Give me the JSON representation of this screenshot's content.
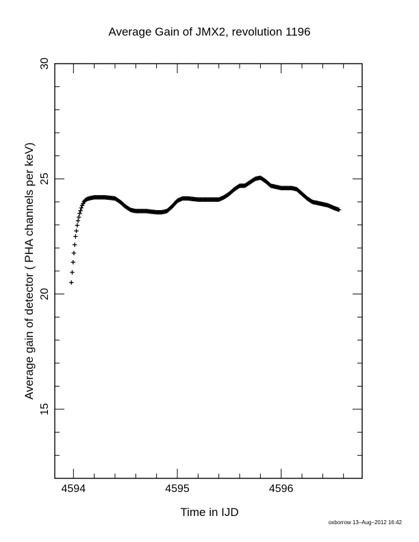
{
  "chart_data": {
    "type": "scatter",
    "title": "Average Gain of JMX2, revolution 1196",
    "xlabel": "Time in IJD",
    "ylabel": "Average gain of detector ( PHA channels per keV)",
    "xlim": [
      4593.82,
      4596.78
    ],
    "ylim": [
      12,
      30
    ],
    "x_ticks": [
      4594,
      4595,
      4596
    ],
    "y_ticks": [
      15,
      20,
      25,
      30
    ],
    "x_minor_step": 0.2,
    "y_minor_step": 1,
    "grid": false,
    "marker": "plus",
    "series": [
      {
        "x": [
          4593.98,
          4594.0,
          4594.02,
          4594.04,
          4594.06,
          4594.08,
          4594.1,
          4594.12,
          4594.15,
          4594.2,
          4594.3,
          4594.4,
          4594.45,
          4594.5,
          4594.55,
          4594.6,
          4594.7,
          4594.8,
          4594.85,
          4594.9,
          4594.95,
          4595.0,
          4595.05,
          4595.1,
          4595.2,
          4595.3,
          4595.4,
          4595.45,
          4595.5,
          4595.55,
          4595.6,
          4595.65,
          4595.7,
          4595.75,
          4595.8,
          4595.85,
          4595.9,
          4596.0,
          4596.1,
          4596.15,
          4596.2,
          4596.25,
          4596.3,
          4596.35,
          4596.4,
          4596.45,
          4596.5,
          4596.56
        ],
        "y": [
          20.5,
          21.6,
          22.5,
          23.1,
          23.5,
          23.8,
          24.0,
          24.1,
          24.15,
          24.2,
          24.2,
          24.15,
          24.0,
          23.8,
          23.65,
          23.6,
          23.6,
          23.55,
          23.55,
          23.6,
          23.8,
          24.05,
          24.15,
          24.15,
          24.1,
          24.1,
          24.1,
          24.2,
          24.35,
          24.55,
          24.7,
          24.7,
          24.85,
          25.0,
          25.05,
          24.9,
          24.7,
          24.6,
          24.6,
          24.55,
          24.35,
          24.15,
          24.0,
          23.95,
          23.9,
          23.85,
          23.75,
          23.65
        ]
      }
    ]
  },
  "footer": {
    "stamp": "oxborrow 13–Aug–2012 16:42"
  }
}
